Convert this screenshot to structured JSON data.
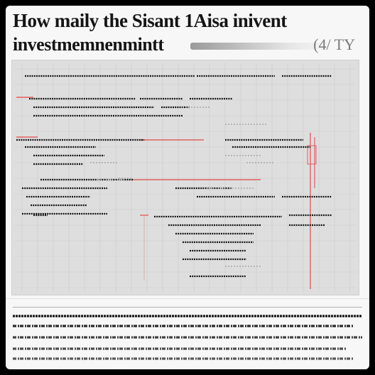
{
  "title": {
    "line1": "How maily the Sisant 1Aisa inivent",
    "line2": "investmemnenmintt",
    "suffix": "(4/ TY"
  },
  "colors": {
    "background": "#f7f7f7",
    "panel": "#dedede",
    "ink": "#151515",
    "accent_red": "#e06060"
  }
}
